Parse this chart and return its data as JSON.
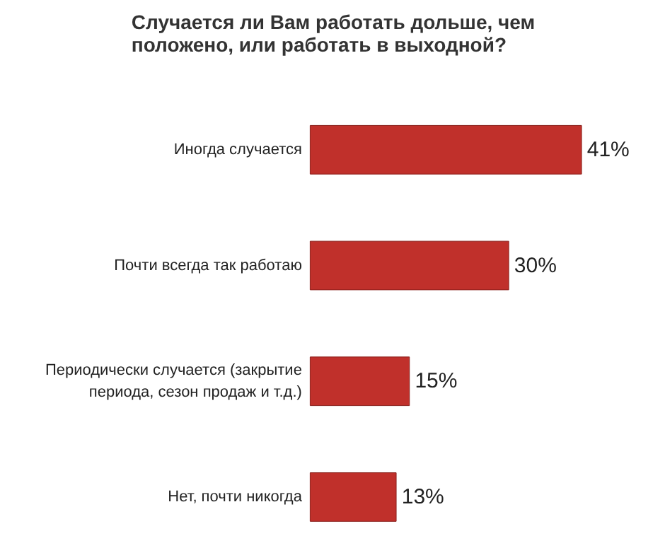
{
  "chart_data": {
    "type": "bar",
    "orientation": "horizontal",
    "title": "Случается ли Вам работать дольше, чем положено, или работать в выходной?",
    "categories": [
      "Иногда случается",
      "Почти всегда так работаю",
      "Периодически случается (закрытие периода, сезон продаж и т.д.)",
      "Нет, почти никогда"
    ],
    "values": [
      41,
      30,
      15,
      13
    ],
    "color": "#c0302b",
    "data_labels": true,
    "value_labels": [
      "41%",
      "30%",
      "15%",
      "13%"
    ]
  }
}
